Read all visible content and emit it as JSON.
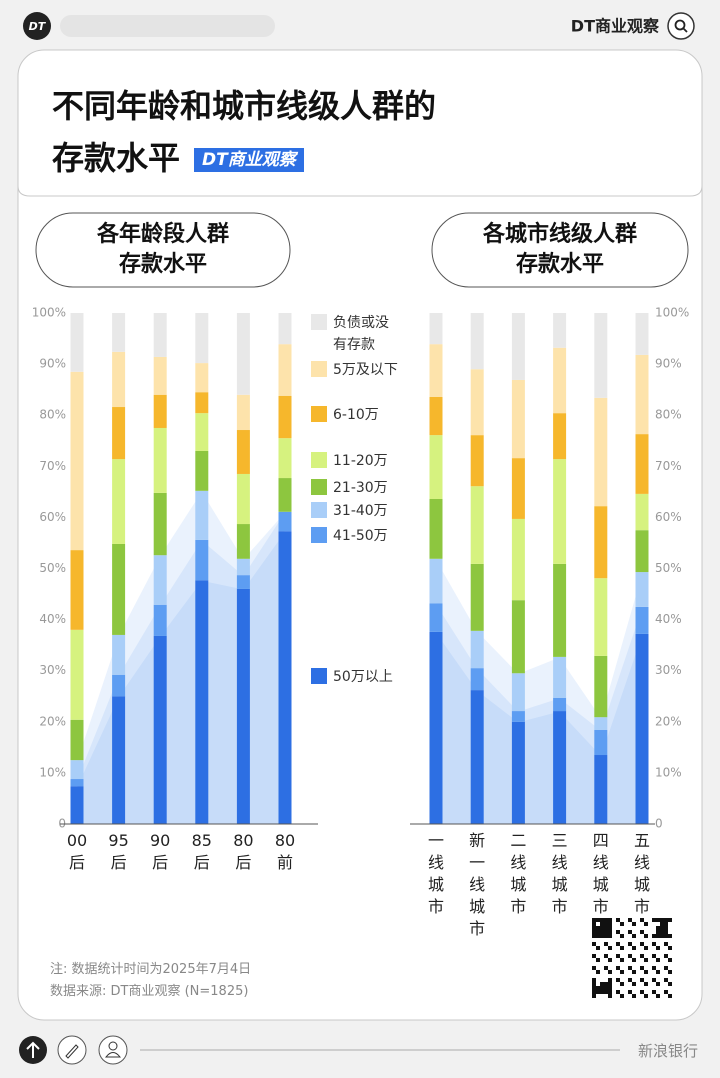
{
  "header": {
    "brand": "DT商业观察"
  },
  "title": "不同年龄和城市线级人群的存款水平",
  "title_badge": "DT商业观察",
  "chart_data": [
    {
      "type": "bar",
      "stacked": true,
      "title": "各年龄段人群存款水平",
      "legend": "right",
      "y_axis_side": "left",
      "categories": [
        "00后",
        "95后",
        "90后",
        "85后",
        "80后",
        "80前"
      ],
      "series": [
        {
          "name": "50万以上",
          "color": "#2d6fe3",
          "values": [
            7.4,
            25,
            36.8,
            47.7,
            46,
            57.3
          ]
        },
        {
          "name": "41-50万",
          "color": "#5d9df2",
          "values": [
            1.4,
            4.2,
            6.1,
            7.9,
            2.7,
            3.8
          ]
        },
        {
          "name": "31-40万",
          "color": "#a9cef8",
          "values": [
            3.7,
            7.8,
            9.7,
            9.6,
            3.2,
            0
          ]
        },
        {
          "name": "21-30万",
          "color": "#8dc63f",
          "values": [
            7.9,
            17.8,
            12.2,
            7.8,
            6.8,
            6.6
          ]
        },
        {
          "name": "11-20万",
          "color": "#d6f27f",
          "values": [
            17.6,
            16.6,
            12.7,
            7.4,
            9.8,
            7.8
          ]
        },
        {
          "name": "6-10万",
          "color": "#f6b72c",
          "values": [
            15.6,
            10.2,
            6.5,
            4.1,
            8.6,
            8.3
          ]
        },
        {
          "name": "5万及以下",
          "color": "#fde3ab",
          "values": [
            34.9,
            10.8,
            7.4,
            5.7,
            6.9,
            10.1
          ]
        },
        {
          "name": "负债或没有存款",
          "color": "#e8e8e8",
          "values": [
            11.5,
            7.6,
            8.6,
            9.8,
            16,
            6.1
          ]
        }
      ],
      "ylim": [
        0,
        100
      ],
      "yticks": [
        0,
        {
          "value": 10,
          "label": "10%"
        },
        {
          "value": 20,
          "label": "20%"
        },
        {
          "value": 30,
          "label": "30%"
        },
        {
          "value": 40,
          "label": "40%"
        },
        {
          "value": 50,
          "label": "50%"
        },
        {
          "value": 60,
          "label": "60%"
        },
        {
          "value": 70,
          "label": "70%"
        },
        {
          "value": 80,
          "label": "80%"
        },
        {
          "value": 90,
          "label": "90%"
        },
        {
          "value": 100,
          "label": "100%"
        }
      ]
    },
    {
      "type": "bar",
      "stacked": true,
      "title": "各城市线级人群存款水平",
      "y_axis_side": "right",
      "categories": [
        "一线城市",
        "新一线城市",
        "二线城市",
        "三线城市",
        "四线城市",
        "五线城市"
      ],
      "series": [
        {
          "color": "#2d6fe3",
          "values": [
            37.6,
            26.2,
            20,
            22.1,
            13.5,
            37.2
          ]
        },
        {
          "color": "#5d9df2",
          "values": [
            5.6,
            4.3,
            2.1,
            2.6,
            4.9,
            5.3
          ]
        },
        {
          "color": "#a9cef8",
          "values": [
            8.7,
            7.3,
            7.4,
            8,
            2.5,
            6.8
          ]
        },
        {
          "color": "#8dc63f",
          "values": [
            11.7,
            13.1,
            14.3,
            18.2,
            12,
            8.2
          ]
        },
        {
          "color": "#d6f27f",
          "values": [
            12.5,
            15.2,
            15.9,
            20.5,
            15.2,
            7.1
          ]
        },
        {
          "color": "#f6b72c",
          "values": [
            7.5,
            10,
            11.9,
            9,
            14.1,
            11.7
          ]
        },
        {
          "color": "#fde3ab",
          "values": [
            10.3,
            12.9,
            15.3,
            12.8,
            21.2,
            15.5
          ]
        },
        {
          "color": "#e8e8e8",
          "values": [
            6.1,
            11,
            13.1,
            6.8,
            16.6,
            8.2
          ]
        }
      ],
      "ylim": [
        0,
        100
      ],
      "yticks": [
        0,
        {
          "value": 10,
          "label": "10%"
        },
        {
          "value": 20,
          "label": "20%"
        },
        {
          "value": 30,
          "label": "30%"
        },
        {
          "value": 40,
          "label": "40%"
        },
        {
          "value": 50,
          "label": "50%"
        },
        {
          "value": 60,
          "label": "60%"
        },
        {
          "value": 70,
          "label": "70%"
        },
        {
          "value": 80,
          "label": "80%"
        },
        {
          "value": 90,
          "label": "90%"
        },
        {
          "value": 100,
          "label": "100%"
        }
      ]
    }
  ],
  "notes": [
    "注: 数据统计时间为2025年7月4日",
    "数据来源: DT商业观察 (N=1825)"
  ],
  "watermark": "新浪银行"
}
